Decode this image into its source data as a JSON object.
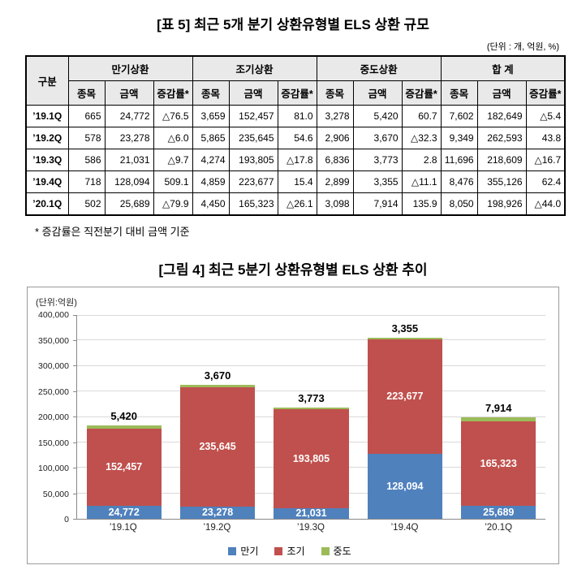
{
  "table_section": {
    "title": "[표 5] 최근 5개 분기 상환유형별 ELS 상환 규모",
    "unit_note": "(단위 : 개, 억원, %)",
    "footnote": "* 증감률은 직전분기 대비 금액 기준",
    "header": {
      "category": "구분",
      "groups": [
        "만기상환",
        "조기상환",
        "중도상환",
        "합 계"
      ],
      "subheaders": [
        "종목",
        "금액",
        "증감률*"
      ]
    },
    "rows": [
      {
        "label": "’19.1Q",
        "cells": [
          "665",
          "24,772",
          "△76.5",
          "3,659",
          "152,457",
          "81.0",
          "3,278",
          "5,420",
          "60.7",
          "7,602",
          "182,649",
          "△5.4"
        ]
      },
      {
        "label": "’19.2Q",
        "cells": [
          "578",
          "23,278",
          "△6.0",
          "5,865",
          "235,645",
          "54.6",
          "2,906",
          "3,670",
          "△32.3",
          "9,349",
          "262,593",
          "43.8"
        ]
      },
      {
        "label": "’19.3Q",
        "cells": [
          "586",
          "21,031",
          "△9.7",
          "4,274",
          "193,805",
          "△17.8",
          "6,836",
          "3,773",
          "2.8",
          "11,696",
          "218,609",
          "△16.7"
        ]
      },
      {
        "label": "’19.4Q",
        "cells": [
          "718",
          "128,094",
          "509.1",
          "4,859",
          "223,677",
          "15.4",
          "2,899",
          "3,355",
          "△11.1",
          "8,476",
          "355,126",
          "62.4"
        ]
      },
      {
        "label": "’20.1Q",
        "cells": [
          "502",
          "25,689",
          "△79.9",
          "4,450",
          "165,323",
          "△26.1",
          "3,098",
          "7,914",
          "135.9",
          "8,050",
          "198,926",
          "△44.0"
        ]
      }
    ]
  },
  "chart_section": {
    "title": "[그림 4] 최근 5분기 상환유형별 ELS 상환 추이",
    "unit_label": "(단위:억원)"
  },
  "chart_data": {
    "type": "bar",
    "stacked": true,
    "title": "[그림 4] 최근 5분기 상환유형별 ELS 상환 추이",
    "categories": [
      "’19.1Q",
      "’19.2Q",
      "’19.3Q",
      "’19.4Q",
      "’20.1Q"
    ],
    "series": [
      {
        "name": "만기",
        "color": "#4f81bd",
        "label_inside": true,
        "values": [
          24772,
          23278,
          21031,
          128094,
          25689
        ]
      },
      {
        "name": "조기",
        "color": "#c0504d",
        "label_inside": true,
        "values": [
          152457,
          235645,
          193805,
          223677,
          165323
        ]
      },
      {
        "name": "중도",
        "color": "#9bbb59",
        "label_inside": false,
        "values": [
          5420,
          3670,
          3773,
          3355,
          7914
        ]
      }
    ],
    "top_labels": [
      "5,420",
      "3,670",
      "3,773",
      "3,355",
      "7,914"
    ],
    "totals": [
      182649,
      262593,
      218609,
      355126,
      198926
    ],
    "ylim": [
      0,
      400000
    ],
    "ytick_step": 50000,
    "grid": true,
    "legend_position": "bottom"
  }
}
